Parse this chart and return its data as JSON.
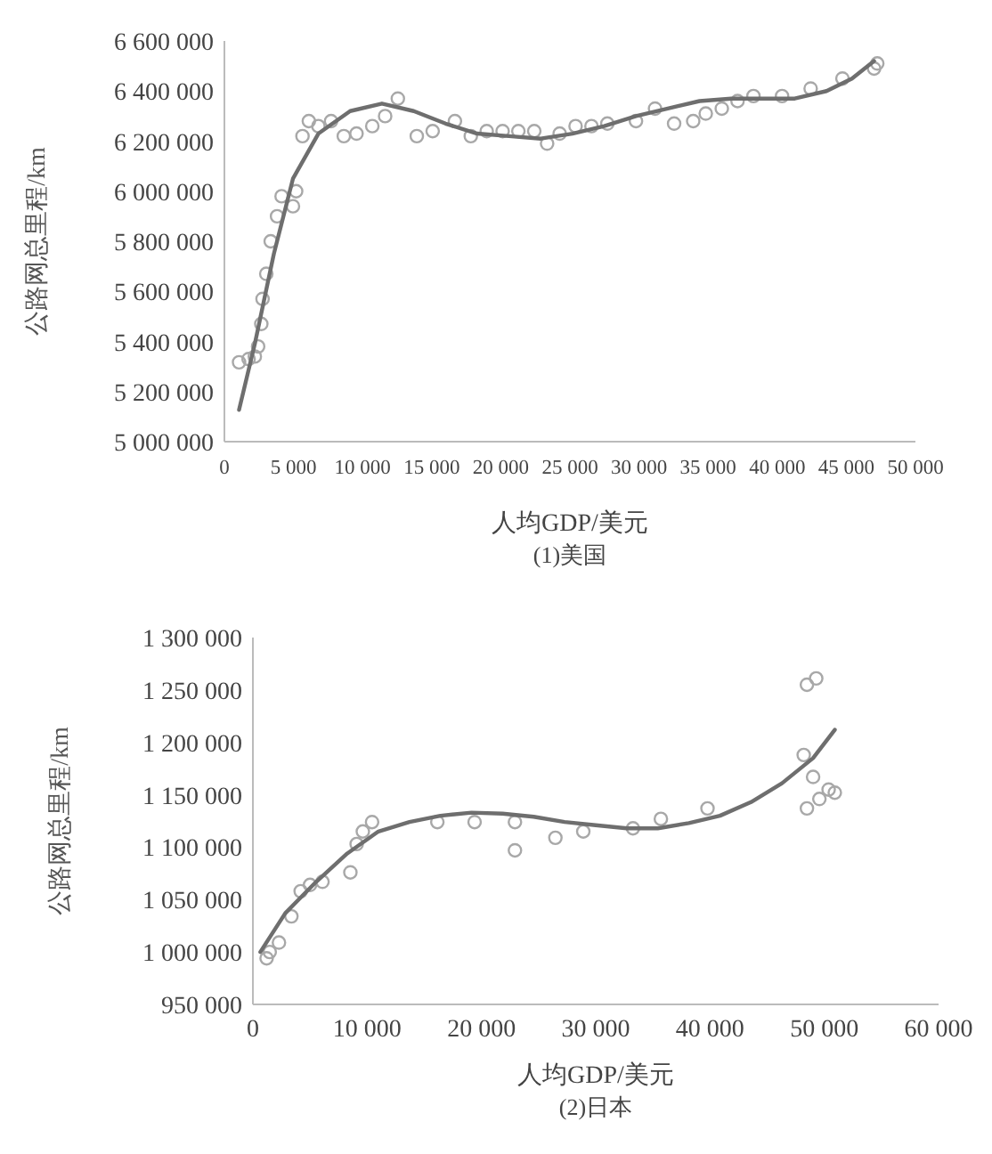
{
  "chart_data": [
    {
      "type": "scatter",
      "title": "(1)美国",
      "xlabel": "人均GDP/美元",
      "ylabel": "公路网总里程/km",
      "marker": "circle",
      "grid": false,
      "xlim": [
        0,
        50000
      ],
      "ylim": [
        5000000,
        6600000
      ],
      "xticks": [
        0,
        {
          "value": 5000,
          "label": "5 000"
        },
        {
          "value": 10000,
          "label": "10 000"
        },
        {
          "value": 15000,
          "label": "15 000"
        },
        {
          "value": 20000,
          "label": "20 000"
        },
        {
          "value": 25000,
          "label": "25 000"
        },
        {
          "value": 30000,
          "label": "30 000"
        },
        {
          "value": 35000,
          "label": "35 000"
        },
        {
          "value": 40000,
          "label": "40 000"
        },
        {
          "value": 45000,
          "label": "45 000"
        },
        {
          "value": 50000,
          "label": "50 000"
        }
      ],
      "yticks": [
        {
          "value": 5000000,
          "label": "5 000 000"
        },
        {
          "value": 5200000,
          "label": "5 200 000"
        },
        {
          "value": 5400000,
          "label": "5 400 000"
        },
        {
          "value": 5600000,
          "label": "5 600 000"
        },
        {
          "value": 5800000,
          "label": "5 800 000"
        },
        {
          "value": 6000000,
          "label": "6 000 000"
        },
        {
          "value": 6200000,
          "label": "6 200 000"
        },
        {
          "value": 6400000,
          "label": "6 400 000"
        },
        {
          "value": 6600000,
          "label": "6 600 000"
        }
      ],
      "series": [
        {
          "color": "#a8a8a8",
          "x": [
            1060,
            1750,
            2200,
            2440,
            2670,
            2760,
            3030,
            3350,
            3810,
            4140,
            4960,
            5190,
            5650,
            6110,
            6800,
            7720,
            8640,
            9560,
            10700,
            11630,
            12550,
            13920,
            15070,
            16680,
            17830,
            18980,
            20130,
            21270,
            22420,
            23350,
            24260,
            25410,
            26560,
            27710,
            29780,
            31160,
            32540,
            33920,
            34830,
            35990,
            37130,
            38280,
            40350,
            42420,
            44720,
            47010,
            47240
          ],
          "values": [
            5317000,
            5330000,
            5340000,
            5380000,
            5470000,
            5570000,
            5670000,
            5800000,
            5900000,
            5980000,
            5940000,
            6000000,
            6220000,
            6280000,
            6260000,
            6280000,
            6220000,
            6230000,
            6260000,
            6300000,
            6370000,
            6220000,
            6240000,
            6280000,
            6220000,
            6240000,
            6240000,
            6240000,
            6240000,
            6190000,
            6230000,
            6260000,
            6260000,
            6270000,
            6280000,
            6330000,
            6270000,
            6280000,
            6310000,
            6330000,
            6360000,
            6380000,
            6380000,
            6410000,
            6450000,
            6490000,
            6510000
          ]
        },
        {
          "type": "line",
          "color": "#6e6e6e",
          "marker": "none",
          "line_style": "solid",
          "x": [
            1060,
            2200,
            3580,
            4960,
            6800,
            9100,
            11400,
            13700,
            16000,
            18290,
            20590,
            22890,
            25180,
            27480,
            29780,
            32080,
            34380,
            36670,
            38970,
            41270,
            43570,
            45410,
            47010
          ],
          "values": [
            5127000,
            5390000,
            5750000,
            6050000,
            6230000,
            6320000,
            6350000,
            6320000,
            6270000,
            6230000,
            6220000,
            6210000,
            6230000,
            6260000,
            6300000,
            6330000,
            6360000,
            6370000,
            6370000,
            6370000,
            6400000,
            6450000,
            6520000
          ]
        }
      ]
    },
    {
      "type": "scatter",
      "title": "(2)日本",
      "xlabel": "人均GDP/美元",
      "ylabel": "公路网总里程/km",
      "marker": "circle",
      "grid": false,
      "xlim": [
        0,
        60000
      ],
      "ylim": [
        950000,
        1300000
      ],
      "xticks": [
        0,
        {
          "value": 10000,
          "label": "10 000"
        },
        {
          "value": 20000,
          "label": "20 000"
        },
        {
          "value": 30000,
          "label": "30 000"
        },
        {
          "value": 40000,
          "label": "40 000"
        },
        {
          "value": 50000,
          "label": "50 000"
        },
        {
          "value": 60000,
          "label": "60 000"
        }
      ],
      "yticks": [
        {
          "value": 950000,
          "label": "950 000"
        },
        {
          "value": 1000000,
          "label": "1 000 000"
        },
        {
          "value": 1050000,
          "label": "1 050 000"
        },
        {
          "value": 1100000,
          "label": "1 100 000"
        },
        {
          "value": 1150000,
          "label": "1 150 000"
        },
        {
          "value": 1200000,
          "label": "1 200 000"
        },
        {
          "value": 1250000,
          "label": "1 250 000"
        },
        {
          "value": 1300000,
          "label": "1 300 000"
        }
      ],
      "series": [
        {
          "color": "#a8a8a8",
          "x": [
            1200,
            1470,
            2280,
            3370,
            4180,
            5000,
            6090,
            8530,
            9080,
            9620,
            10430,
            16140,
            19400,
            22930,
            22930,
            26470,
            28910,
            33260,
            35700,
            39780,
            48200,
            48480,
            49290,
            48480,
            49570,
            50380,
            50920,
            49020
          ],
          "values": [
            994000,
            1000000,
            1009000,
            1034000,
            1058000,
            1064000,
            1067000,
            1076000,
            1103000,
            1115000,
            1124000,
            1124000,
            1124000,
            1124000,
            1097000,
            1109000,
            1115000,
            1118000,
            1127000,
            1137000,
            1188000,
            1255000,
            1261000,
            1137000,
            1146000,
            1155000,
            1152000,
            1167000
          ]
        },
        {
          "type": "line",
          "color": "#6e6e6e",
          "marker": "none",
          "line_style": "solid",
          "x": [
            650,
            2830,
            5540,
            8260,
            10980,
            13700,
            16410,
            19130,
            21850,
            24570,
            27280,
            30000,
            32720,
            35430,
            38150,
            40870,
            43590,
            46300,
            49020,
            50920
          ],
          "values": [
            1000000,
            1037000,
            1067000,
            1094000,
            1115000,
            1124000,
            1130000,
            1133000,
            1132000,
            1129000,
            1124000,
            1121000,
            1118000,
            1118000,
            1123000,
            1130000,
            1143000,
            1161000,
            1185000,
            1212000
          ]
        }
      ]
    }
  ]
}
